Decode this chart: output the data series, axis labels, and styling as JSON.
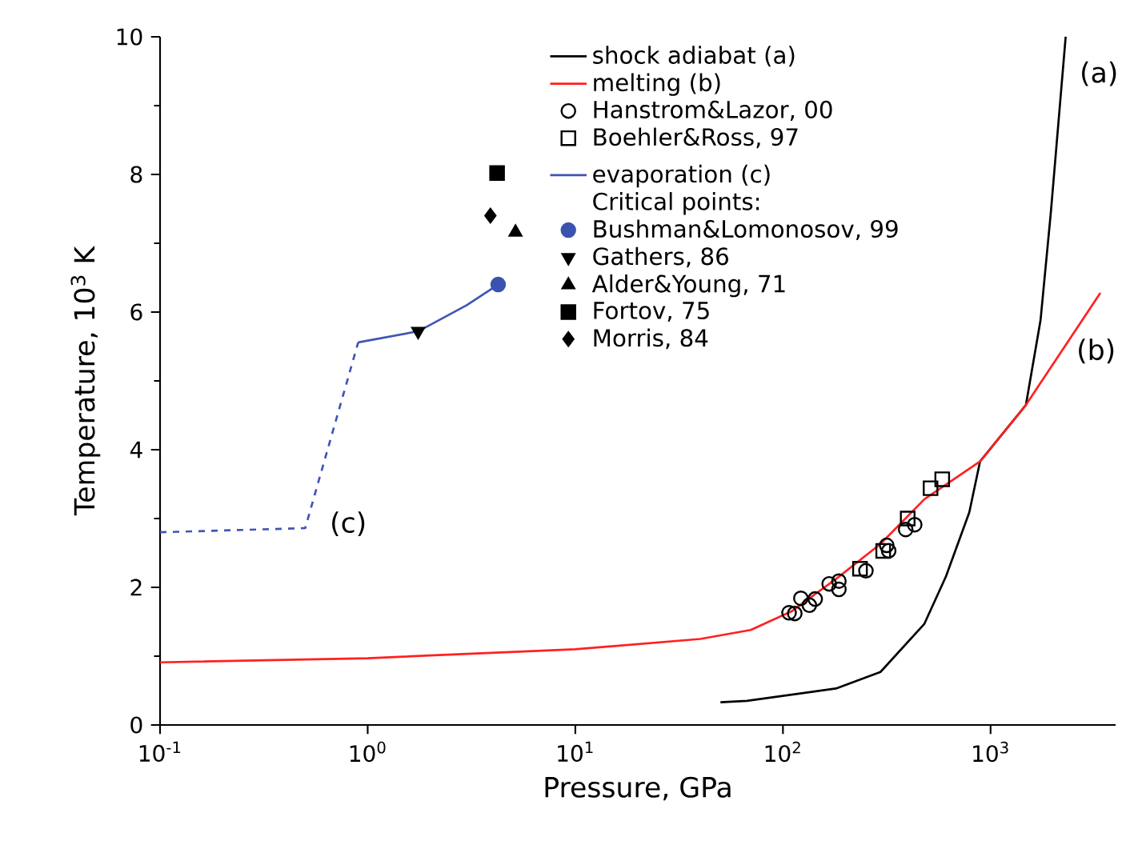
{
  "chart_data": {
    "type": "line",
    "xlabel": "Pressure, GPa",
    "ylabel": "Temperature, 10$^{3}$ K",
    "log": "x",
    "xlim": [
      0.1,
      4000
    ],
    "ylim": [
      0,
      10
    ],
    "xticks": [
      {
        "value": 0.1,
        "label": "10$^{-1}$"
      },
      {
        "value": 1,
        "label": "10$^{0}$"
      },
      {
        "value": 10,
        "label": "10$^{1}$"
      },
      {
        "value": 100,
        "label": "10$^{2}$"
      },
      {
        "value": 1000,
        "label": "10$^{3}$"
      }
    ],
    "yticks": [
      0,
      2,
      4,
      6,
      8,
      10
    ],
    "legend": "top",
    "legend_title": "Critical points:",
    "series": [
      {
        "name": "shock adiabat (a)",
        "color": "#000000",
        "line_style": "solid",
        "marker": "none",
        "x": [
          50,
          67,
          180,
          295,
          480,
          610,
          790,
          890,
          1480,
          1740,
          1950,
          2300
        ],
        "values": [
          0.33,
          0.35,
          0.53,
          0.77,
          1.47,
          2.16,
          3.09,
          3.83,
          4.65,
          5.88,
          7.44,
          10.0
        ]
      },
      {
        "name": "melting (b)",
        "color": "#ff2020",
        "line_style": "solid",
        "marker": "none",
        "x": [
          0.1,
          1,
          10,
          40,
          70,
          110,
          180,
          295,
          480,
          890,
          1480,
          3380
        ],
        "values": [
          0.91,
          0.97,
          1.1,
          1.25,
          1.38,
          1.65,
          2.12,
          2.63,
          3.28,
          3.83,
          4.65,
          6.28
        ]
      },
      {
        "name": "Hanstrom&Lazor, 00",
        "type": "scatter",
        "color": "#000000",
        "marker": "circle",
        "x": [
          107,
          114,
          122,
          134,
          143,
          167,
          186,
          186,
          251,
          316,
          323,
          390,
          431
        ],
        "values": [
          1.63,
          1.62,
          1.84,
          1.74,
          1.83,
          2.05,
          2.09,
          1.97,
          2.24,
          2.61,
          2.53,
          2.84,
          2.91
        ]
      },
      {
        "name": "Boehler&Ross, 97",
        "type": "scatter",
        "color": "#000000",
        "marker": "square",
        "x": [
          235,
          304,
          399,
          514,
          585
        ],
        "values": [
          2.27,
          2.53,
          3.0,
          3.44,
          3.57
        ]
      },
      {
        "name": "evaporation (c)",
        "color": "#4055b5",
        "line_style": "solid",
        "marker": "none",
        "x": [
          0.9,
          1.75,
          3,
          4.25
        ],
        "values": [
          5.56,
          5.72,
          6.1,
          6.4
        ]
      },
      {
        "color": "#4055b5",
        "line_style": "dashed",
        "marker": "none",
        "x": [
          0.1,
          0.5,
          0.9
        ],
        "values": [
          2.8,
          2.86,
          5.56
        ]
      },
      {
        "name": "Bushman&Lomonosov, 99",
        "type": "scatter",
        "color": "#3a53b0",
        "marker": "circle",
        "x": [
          4.25
        ],
        "values": [
          6.4
        ]
      },
      {
        "name": "Gathers, 86",
        "type": "scatter",
        "color": "#000000",
        "marker": "triangle_down",
        "x": [
          1.75
        ],
        "values": [
          5.72
        ]
      },
      {
        "name": "Alder&Young, 71",
        "type": "scatter",
        "color": "#000000",
        "marker": "triangle",
        "x": [
          5.15
        ],
        "values": [
          7.16
        ]
      },
      {
        "name": "Fortov, 75",
        "type": "scatter",
        "color": "#000000",
        "marker": "square",
        "x": [
          4.2
        ],
        "values": [
          8.02
        ]
      },
      {
        "name": "Morris, 84",
        "type": "scatter",
        "color": "#000000",
        "marker": "diamond",
        "x": [
          3.9
        ],
        "values": [
          7.4
        ]
      }
    ],
    "annotations": [
      "(a)",
      "(b)",
      "(c)"
    ]
  }
}
